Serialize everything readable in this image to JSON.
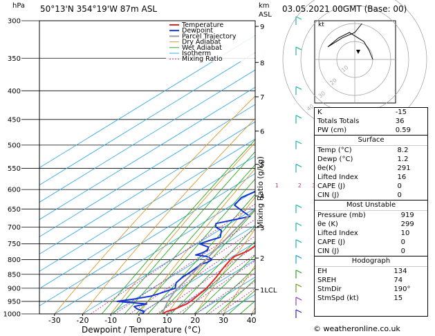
{
  "header": {
    "station": "50°13'N 354°19'W 87m ASL",
    "datetime": "03.05.2021 00GMT (Base: 00)",
    "y_unit": "hPa",
    "km_unit": "km",
    "asl_unit": "ASL",
    "mixing_label": "Mixing Ratio (g/kg)",
    "hodo_unit": "kt",
    "copyright": "© weatheronline.co.uk"
  },
  "colors": {
    "temperature": "#e8231f",
    "dewpoint": "#1234d6",
    "parcel": "#9c9c9c",
    "dry_adiabat": "#d99a2b",
    "wet_adiabat": "#26a81e",
    "isotherm": "#38a9e8",
    "mixing_ratio": "#c0308f"
  },
  "chart_data": {
    "type": "line",
    "title": "",
    "xlabel": "Dewpoint / Temperature (°C)",
    "ylabel": "hPa",
    "xlim": [
      -35,
      40
    ],
    "ylim": [
      1000,
      300
    ],
    "pressure_ticks": [
      1000,
      950,
      900,
      850,
      800,
      750,
      700,
      650,
      600,
      550,
      500,
      450,
      400,
      350,
      300
    ],
    "temp_ticks": [
      -30,
      -20,
      -10,
      0,
      10,
      20,
      30,
      40
    ],
    "km_ticks": [
      {
        "label": "9",
        "p": 307
      },
      {
        "label": "8",
        "p": 356
      },
      {
        "label": "7",
        "p": 410
      },
      {
        "label": "6",
        "p": 472
      },
      {
        "label": "5",
        "p": 541
      },
      {
        "label": "4",
        "p": 616
      },
      {
        "label": "3",
        "p": 701
      },
      {
        "label": "2",
        "p": 795
      },
      {
        "label": "1LCL",
        "p": 905
      }
    ],
    "mixing_ratio_labels": [
      "1",
      "2",
      "3",
      "4",
      "6",
      "8",
      "10",
      "15",
      "20",
      "25"
    ],
    "legend": [
      "Temperature",
      "Dewpoint",
      "Parcel Trajectory",
      "Dry Adiabat",
      "Wet Adiabat",
      "Isotherm",
      "Mixing Ratio"
    ],
    "series": [
      {
        "name": "Temperature",
        "points": [
          [
            1000,
            8.2
          ],
          [
            990,
            8.5
          ],
          [
            980,
            10.0
          ],
          [
            960,
            11.2
          ],
          [
            945,
            11.0
          ],
          [
            930,
            10.4
          ],
          [
            910,
            9.6
          ],
          [
            900,
            9.1
          ],
          [
            880,
            7.7
          ],
          [
            860,
            6.2
          ],
          [
            840,
            4.4
          ],
          [
            820,
            2.7
          ],
          [
            800,
            1.1
          ],
          [
            790,
            0.6
          ],
          [
            780,
            1.6
          ],
          [
            770,
            2.2
          ],
          [
            750,
            1.6
          ],
          [
            730,
            0.1
          ],
          [
            700,
            -1.8
          ],
          [
            670,
            -3.9
          ],
          [
            640,
            -6.2
          ],
          [
            610,
            -8.6
          ],
          [
            590,
            -10.4
          ],
          [
            570,
            -11.6
          ],
          [
            550,
            -13.5
          ],
          [
            525,
            -15.9
          ],
          [
            500,
            -18.4
          ],
          [
            470,
            -21.4
          ],
          [
            450,
            -23.3
          ],
          [
            425,
            -26.4
          ],
          [
            400,
            -29.2
          ],
          [
            375,
            -32.5
          ],
          [
            350,
            -35.6
          ],
          [
            325,
            -39.0
          ],
          [
            300,
            -42.4
          ]
        ]
      },
      {
        "name": "Dewpoint",
        "points": [
          [
            1000,
            1.2
          ],
          [
            990,
            0.5
          ],
          [
            980,
            -3.5
          ],
          [
            970,
            -6.0
          ],
          [
            960,
            -3.0
          ],
          [
            950,
            -15.0
          ],
          [
            940,
            -10.0
          ],
          [
            930,
            -6.0
          ],
          [
            920,
            -4.5
          ],
          [
            900,
            -2.0
          ],
          [
            880,
            -4.8
          ],
          [
            860,
            -5.8
          ],
          [
            840,
            -6.0
          ],
          [
            820,
            -6.5
          ],
          [
            815,
            -7.0
          ],
          [
            810,
            -5.5
          ],
          [
            800,
            -5.5
          ],
          [
            790,
            -9.0
          ],
          [
            785,
            -14.0
          ],
          [
            780,
            -13.0
          ],
          [
            770,
            -12.5
          ],
          [
            760,
            -14.0
          ],
          [
            750,
            -19.0
          ],
          [
            740,
            -17.5
          ],
          [
            730,
            -15.5
          ],
          [
            710,
            -19.0
          ],
          [
            700,
            -23.0
          ],
          [
            690,
            -25.0
          ],
          [
            680,
            -21.0
          ],
          [
            670,
            -17.0
          ],
          [
            660,
            -21.0
          ],
          [
            640,
            -29.0
          ],
          [
            620,
            -31.0
          ],
          [
            600,
            -29.0
          ],
          [
            590,
            -28.0
          ],
          [
            575,
            -36.0
          ],
          [
            560,
            -37.0
          ],
          [
            540,
            -33.0
          ],
          [
            520,
            -31.5
          ],
          [
            510,
            -31.0
          ],
          [
            500,
            -33.0
          ],
          [
            480,
            -33.0
          ],
          [
            450,
            -35.5
          ],
          [
            420,
            -38.0
          ],
          [
            400,
            -40.0
          ],
          [
            375,
            -43.0
          ],
          [
            350,
            -46.0
          ],
          [
            340,
            -46.0
          ],
          [
            330,
            -47.0
          ],
          [
            320,
            -45.5
          ],
          [
            312,
            -42.0
          ],
          [
            305,
            -41.0
          ],
          [
            300,
            -43.5
          ]
        ]
      },
      {
        "name": "Parcel Trajectory",
        "points": [
          [
            1000,
            8.2
          ],
          [
            950,
            3.0
          ],
          [
            905,
            -0.8
          ],
          [
            850,
            -4.2
          ],
          [
            800,
            -7.7
          ],
          [
            750,
            -11.3
          ],
          [
            700,
            -15.3
          ],
          [
            650,
            -19.5
          ],
          [
            600,
            -24.1
          ],
          [
            550,
            -29.0
          ],
          [
            500,
            -34.6
          ],
          [
            450,
            -40.8
          ],
          [
            400,
            -47.8
          ],
          [
            350,
            -55.5
          ],
          [
            300,
            -64.5
          ]
        ]
      }
    ]
  },
  "hodograph": {
    "unit": "kt",
    "ring_labels": [
      "10",
      "20",
      "30",
      "40"
    ],
    "winds": [
      [
        10,
        0
      ],
      [
        8,
        5
      ],
      [
        5,
        10
      ],
      [
        -3,
        15
      ],
      [
        -9,
        12
      ],
      [
        -15,
        7
      ],
      [
        -7,
        12
      ],
      [
        0,
        15
      ],
      [
        4,
        20
      ]
    ]
  },
  "indices": [
    {
      "name": "K",
      "value": "-15"
    },
    {
      "name": "Totals Totals",
      "value": "36"
    },
    {
      "name": "PW (cm)",
      "value": "0.59"
    }
  ],
  "surface": {
    "title": "Surface",
    "rows": [
      {
        "name": "Temp (°C)",
        "value": "8.2"
      },
      {
        "name": "Dewp (°C)",
        "value": "1.2"
      },
      {
        "name": "θe(K)",
        "value": "291"
      },
      {
        "name": "Lifted Index",
        "value": "16"
      },
      {
        "name": "CAPE (J)",
        "value": "0"
      },
      {
        "name": "CIN (J)",
        "value": "0"
      }
    ]
  },
  "most_unstable": {
    "title": "Most Unstable",
    "rows": [
      {
        "name": "Pressure (mb)",
        "value": "919"
      },
      {
        "name": "θe (K)",
        "value": "299"
      },
      {
        "name": "Lifted Index",
        "value": "10"
      },
      {
        "name": "CAPE (J)",
        "value": "0"
      },
      {
        "name": "CIN (J)",
        "value": "0"
      }
    ]
  },
  "hodograph_table": {
    "title": "Hodograph",
    "rows": [
      {
        "name": "EH",
        "value": "134"
      },
      {
        "name": "SREH",
        "value": "74"
      },
      {
        "name": "StmDir",
        "value": "190°"
      },
      {
        "name": "StmSpd (kt)",
        "value": "15"
      }
    ]
  }
}
